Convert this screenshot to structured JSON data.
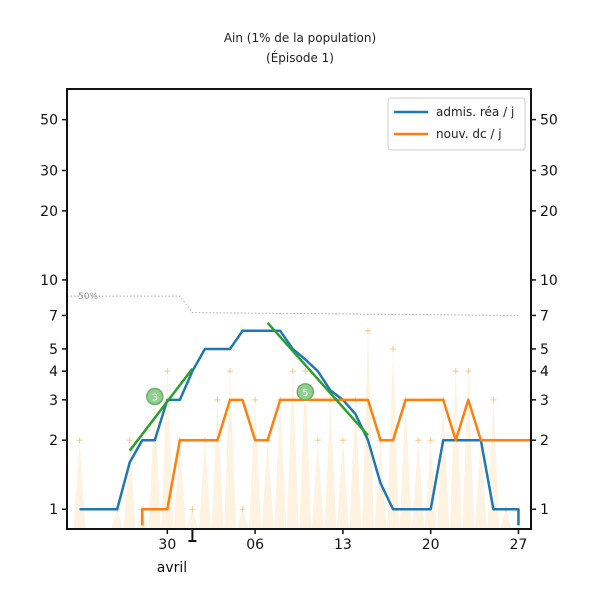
{
  "chart_data": {
    "type": "line",
    "title": "Ain (1% de la population)",
    "subtitle": "(Épisode 1)",
    "xlabel": "",
    "ylabel": "",
    "y_scale": "log",
    "ylim": [
      0.82,
      68
    ],
    "xlim": [
      "2020-03-22",
      "2020-04-28"
    ],
    "y_ticks": [
      1,
      2,
      3,
      4,
      5,
      7,
      10,
      20,
      30,
      50
    ],
    "y_tick_labels": [
      "1",
      "2",
      "3",
      "4",
      "5",
      "7",
      "10",
      "20",
      "30",
      "50"
    ],
    "x_ticks": [
      "2020-03-30",
      "2020-04-06",
      "2020-04-13",
      "2020-04-20",
      "2020-04-27"
    ],
    "x_tick_labels": [
      "30",
      "06",
      "13",
      "20",
      "27"
    ],
    "month_label": "avril",
    "threshold_label": "50%",
    "legend_position": "top-right",
    "series": [
      {
        "name": "admis. réa / j",
        "color": "#1f77b4",
        "points": [
          [
            "2020-03-23",
            1.0
          ],
          [
            "2020-03-25",
            1.0
          ],
          [
            "2020-03-26",
            1.0
          ],
          [
            "2020-03-27",
            1.6
          ],
          [
            "2020-03-28",
            2.0
          ],
          [
            "2020-03-29",
            2.0
          ],
          [
            "2020-03-30",
            3.0
          ],
          [
            "2020-03-31",
            3.0
          ],
          [
            "2020-04-01",
            4.0
          ],
          [
            "2020-04-02",
            5.0
          ],
          [
            "2020-04-03",
            5.0
          ],
          [
            "2020-04-04",
            5.0
          ],
          [
            "2020-04-05",
            6.0
          ],
          [
            "2020-04-06",
            6.0
          ],
          [
            "2020-04-07",
            6.0
          ],
          [
            "2020-04-08",
            6.0
          ],
          [
            "2020-04-09",
            5.0
          ],
          [
            "2020-04-10",
            4.5
          ],
          [
            "2020-04-11",
            4.0
          ],
          [
            "2020-04-12",
            3.3
          ],
          [
            "2020-04-13",
            3.0
          ],
          [
            "2020-04-14",
            2.6
          ],
          [
            "2020-04-15",
            2.0
          ],
          [
            "2020-04-16",
            1.3
          ],
          [
            "2020-04-17",
            1.0
          ],
          [
            "2020-04-18",
            1.0
          ],
          [
            "2020-04-19",
            1.0
          ],
          [
            "2020-04-20",
            1.0
          ],
          [
            "2020-04-21",
            2.0
          ],
          [
            "2020-04-22",
            2.0
          ],
          [
            "2020-04-23",
            2.0
          ],
          [
            "2020-04-24",
            2.0
          ],
          [
            "2020-04-25",
            1.0
          ],
          [
            "2020-04-26",
            1.0
          ],
          [
            "2020-04-27",
            1.0
          ],
          [
            "2020-04-27",
            0.85
          ]
        ]
      },
      {
        "name": "nouv. dc / j",
        "color": "#ff7f0e",
        "points": [
          [
            "2020-03-28",
            0.85
          ],
          [
            "2020-03-28",
            1.0
          ],
          [
            "2020-03-30",
            1.0
          ],
          [
            "2020-03-31",
            2.0
          ],
          [
            "2020-04-01",
            2.0
          ],
          [
            "2020-04-02",
            2.0
          ],
          [
            "2020-04-03",
            2.0
          ],
          [
            "2020-04-04",
            3.0
          ],
          [
            "2020-04-05",
            3.0
          ],
          [
            "2020-04-06",
            2.0
          ],
          [
            "2020-04-07",
            2.0
          ],
          [
            "2020-04-08",
            3.0
          ],
          [
            "2020-04-09",
            3.0
          ],
          [
            "2020-04-10",
            3.0
          ],
          [
            "2020-04-11",
            3.0
          ],
          [
            "2020-04-12",
            3.0
          ],
          [
            "2020-04-13",
            3.0
          ],
          [
            "2020-04-14",
            3.0
          ],
          [
            "2020-04-15",
            3.0
          ],
          [
            "2020-04-16",
            2.0
          ],
          [
            "2020-04-17",
            2.0
          ],
          [
            "2020-04-18",
            3.0
          ],
          [
            "2020-04-19",
            3.0
          ],
          [
            "2020-04-20",
            3.0
          ],
          [
            "2020-04-21",
            3.0
          ],
          [
            "2020-04-22",
            2.0
          ],
          [
            "2020-04-23",
            3.0
          ],
          [
            "2020-04-24",
            2.0
          ],
          [
            "2020-04-25",
            2.0
          ],
          [
            "2020-04-26",
            2.0
          ],
          [
            "2020-04-27",
            2.0
          ],
          [
            "2020-04-28",
            2.0
          ]
        ]
      }
    ],
    "daily_raw_points": [
      [
        "2020-03-23",
        2
      ],
      [
        "2020-03-26",
        1
      ],
      [
        "2020-03-27",
        2
      ],
      [
        "2020-03-28",
        1
      ],
      [
        "2020-03-29",
        3
      ],
      [
        "2020-03-30",
        4
      ],
      [
        "2020-03-31",
        2
      ],
      [
        "2020-04-01",
        1
      ],
      [
        "2020-04-02",
        2
      ],
      [
        "2020-04-03",
        3
      ],
      [
        "2020-04-04",
        4
      ],
      [
        "2020-04-05",
        1
      ],
      [
        "2020-04-06",
        3
      ],
      [
        "2020-04-07",
        2
      ],
      [
        "2020-04-08",
        3
      ],
      [
        "2020-04-09",
        4
      ],
      [
        "2020-04-10",
        4
      ],
      [
        "2020-04-11",
        2
      ],
      [
        "2020-04-12",
        3
      ],
      [
        "2020-04-13",
        2
      ],
      [
        "2020-04-14",
        3
      ],
      [
        "2020-04-15",
        6
      ],
      [
        "2020-04-16",
        2
      ],
      [
        "2020-04-17",
        5
      ],
      [
        "2020-04-18",
        3
      ],
      [
        "2020-04-19",
        2
      ],
      [
        "2020-04-20",
        2
      ],
      [
        "2020-04-21",
        3
      ],
      [
        "2020-04-22",
        4
      ],
      [
        "2020-04-23",
        4
      ],
      [
        "2020-04-24",
        2
      ],
      [
        "2020-04-25",
        3
      ],
      [
        "2020-04-26",
        1
      ]
    ],
    "threshold_line": [
      [
        "2020-03-22",
        8.5
      ],
      [
        "2020-03-31",
        8.5
      ],
      [
        "2020-04-01",
        7.2
      ],
      [
        "2020-04-27",
        7.0
      ]
    ],
    "trend_lines": [
      {
        "color": "#2ca02c",
        "points": [
          [
            "2020-03-27",
            1.8
          ],
          [
            "2020-04-01",
            4.1
          ]
        ],
        "marker_label": "3",
        "marker_at": [
          "2020-03-29",
          3.1
        ]
      },
      {
        "color": "#2ca02c",
        "points": [
          [
            "2020-04-07",
            6.5
          ],
          [
            "2020-04-15",
            2.1
          ]
        ],
        "marker_label": "5",
        "marker_at": [
          "2020-04-10",
          3.25
        ]
      }
    ],
    "grid": false
  }
}
